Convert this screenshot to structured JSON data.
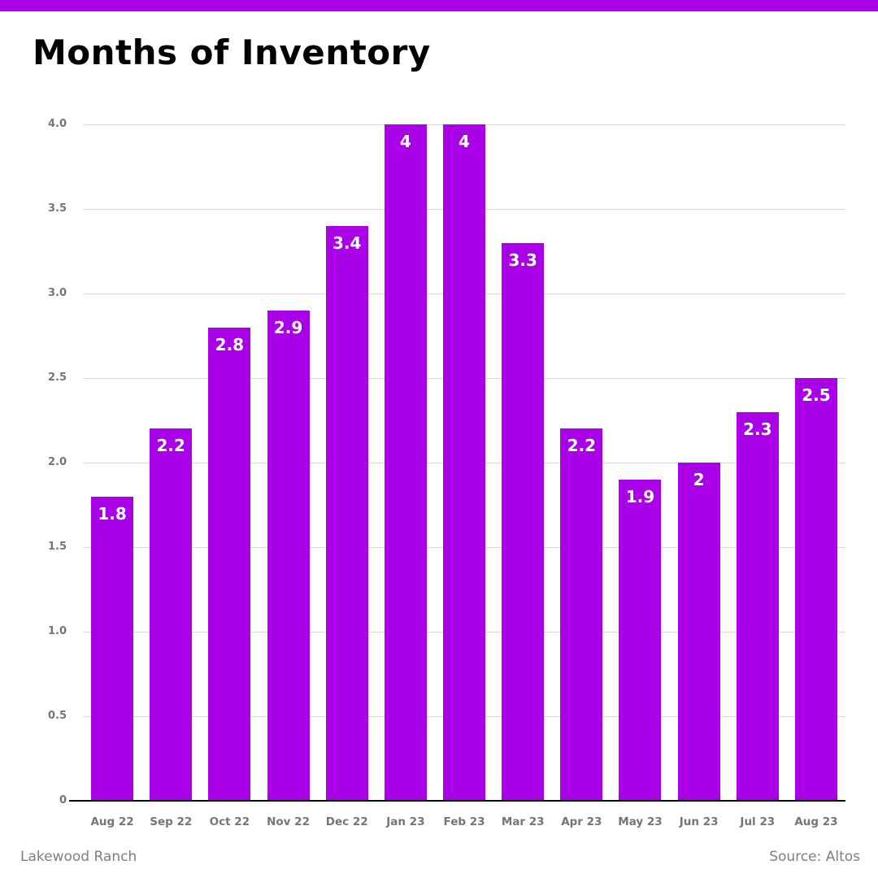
{
  "accent_color": "#aa00e8",
  "header": {
    "title": "Months of Inventory"
  },
  "chart_data": {
    "type": "bar",
    "title": "Months of Inventory",
    "categories": [
      "Aug 22",
      "Sep 22",
      "Oct 22",
      "Nov 22",
      "Dec 22",
      "Jan 23",
      "Feb 23",
      "Mar 23",
      "Apr 23",
      "May 23",
      "Jun 23",
      "Jul 23",
      "Aug 23"
    ],
    "values": [
      1.8,
      2.2,
      2.8,
      2.9,
      3.4,
      4,
      4,
      3.3,
      2.2,
      1.9,
      2,
      2.3,
      2.5
    ],
    "value_labels": [
      "1.8",
      "2.2",
      "2.8",
      "2.9",
      "3.4",
      "4",
      "4",
      "3.3",
      "2.2",
      "1.9",
      "2",
      "2.3",
      "2.5"
    ],
    "xlabel": "",
    "ylabel": "",
    "ylim": [
      0,
      4.0
    ],
    "yticks": [
      {
        "value": 0,
        "label": "0"
      },
      {
        "value": 0.5,
        "label": "0.5"
      },
      {
        "value": 1.0,
        "label": "1.0"
      },
      {
        "value": 1.5,
        "label": "1.5"
      },
      {
        "value": 2.0,
        "label": "2.0"
      },
      {
        "value": 2.5,
        "label": "2.5"
      },
      {
        "value": 3.0,
        "label": "3.0"
      },
      {
        "value": 3.5,
        "label": "3.5"
      },
      {
        "value": 4.0,
        "label": "4.0"
      }
    ],
    "grid": true,
    "legend": false,
    "bar_color": "#aa00e8",
    "value_label_color": "#ffffff",
    "tick_label_color": "#757575",
    "gridline_color": "#d9d9d9"
  },
  "footer": {
    "left": "Lakewood Ranch",
    "right": "Source: Altos"
  }
}
